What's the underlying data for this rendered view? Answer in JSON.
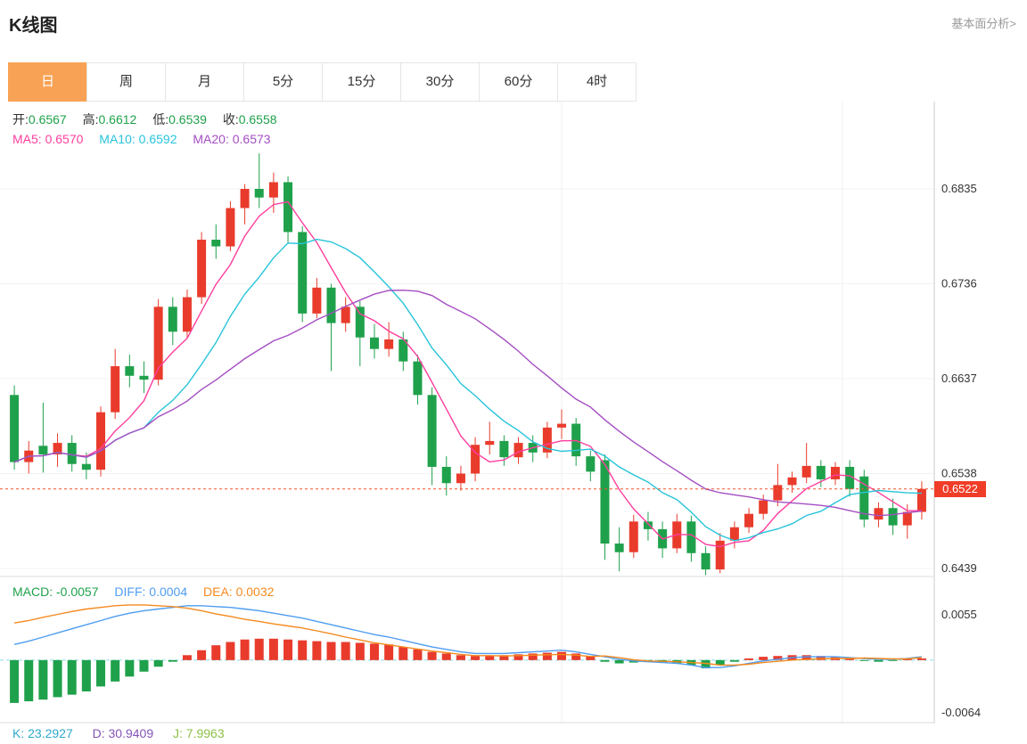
{
  "header": {
    "title": "K线图",
    "link": "基本面分析>"
  },
  "tabs": [
    {
      "label": "日",
      "name": "tab-day",
      "active": true
    },
    {
      "label": "周",
      "name": "tab-week",
      "active": false
    },
    {
      "label": "月",
      "name": "tab-month",
      "active": false
    },
    {
      "label": "5分",
      "name": "tab-5min",
      "active": false
    },
    {
      "label": "15分",
      "name": "tab-15min",
      "active": false
    },
    {
      "label": "30分",
      "name": "tab-30min",
      "active": false
    },
    {
      "label": "60分",
      "name": "tab-60min",
      "active": false
    },
    {
      "label": "4时",
      "name": "tab-4hour",
      "active": false
    }
  ],
  "main_chart": {
    "ohlc": {
      "open_label": "开:",
      "open": "0.6567",
      "high_label": "高:",
      "high": "0.6612",
      "low_label": "低:",
      "low": "0.6539",
      "close_label": "收:",
      "close": "0.6558"
    },
    "ma": {
      "ma5_label": "MA5:",
      "ma5": "0.6570",
      "ma10_label": "MA10:",
      "ma10": "0.6592",
      "ma20_label": "MA20:",
      "ma20": "0.6573"
    }
  },
  "macd_panel": {
    "macd_label": "MACD:",
    "macd": "-0.0057",
    "diff_label": "DIFF:",
    "diff": "0.0004",
    "dea_label": "DEA:",
    "dea": "0.0032"
  },
  "kdj_panel": {
    "k_label": "K:",
    "k": "23.2927",
    "d_label": "D:",
    "d": "30.9409",
    "j_label": "J:",
    "j": "7.9963"
  },
  "colors": {
    "up": "#e93b2c",
    "down": "#1fa14b",
    "tab_active": "#f7a254",
    "ma5": "#ff3e9e",
    "ma10": "#27c4da",
    "ma20": "#a44ec2",
    "diff": "#4f9df2",
    "dea": "#f58a1f",
    "zero": "#86dcea",
    "price_line": "#f4502c",
    "badge": "#f03d28",
    "k": "#2fa9cb",
    "d": "#8455b5",
    "j": "#8dc04a",
    "link": "#999999",
    "tick_text": "#333333"
  },
  "chart_data": {
    "type": "candlestick",
    "y_ticks": [
      0.6835,
      0.6736,
      0.6637,
      0.6538,
      0.6439
    ],
    "current_price": 0.6522,
    "ma_windows": [
      5,
      10,
      20
    ],
    "candles": [
      [
        0.662,
        0.663,
        0.6542,
        0.655
      ],
      [
        0.655,
        0.6572,
        0.6538,
        0.6562
      ],
      [
        0.6567,
        0.6612,
        0.6539,
        0.6558
      ],
      [
        0.6558,
        0.658,
        0.6545,
        0.657
      ],
      [
        0.657,
        0.6578,
        0.654,
        0.6548
      ],
      [
        0.6548,
        0.656,
        0.6532,
        0.6542
      ],
      [
        0.6542,
        0.6608,
        0.6535,
        0.6602
      ],
      [
        0.6602,
        0.6668,
        0.6595,
        0.665
      ],
      [
        0.665,
        0.6662,
        0.6628,
        0.664
      ],
      [
        0.664,
        0.6655,
        0.6622,
        0.6636
      ],
      [
        0.6636,
        0.672,
        0.663,
        0.6712
      ],
      [
        0.6712,
        0.6722,
        0.6672,
        0.6686
      ],
      [
        0.6686,
        0.673,
        0.668,
        0.6722
      ],
      [
        0.6722,
        0.679,
        0.6715,
        0.6782
      ],
      [
        0.6782,
        0.6798,
        0.6762,
        0.6775
      ],
      [
        0.6775,
        0.6822,
        0.677,
        0.6815
      ],
      [
        0.6815,
        0.684,
        0.6798,
        0.6835
      ],
      [
        0.6835,
        0.6872,
        0.6815,
        0.6826
      ],
      [
        0.6826,
        0.6852,
        0.681,
        0.6842
      ],
      [
        0.6842,
        0.6848,
        0.6778,
        0.679
      ],
      [
        0.679,
        0.6796,
        0.6696,
        0.6705
      ],
      [
        0.6705,
        0.6742,
        0.67,
        0.6732
      ],
      [
        0.6732,
        0.6736,
        0.6645,
        0.6695
      ],
      [
        0.6695,
        0.6722,
        0.6686,
        0.6712
      ],
      [
        0.6712,
        0.6718,
        0.665,
        0.668
      ],
      [
        0.668,
        0.6694,
        0.6658,
        0.6668
      ],
      [
        0.6668,
        0.6696,
        0.666,
        0.6678
      ],
      [
        0.6678,
        0.6686,
        0.6645,
        0.6655
      ],
      [
        0.6655,
        0.6662,
        0.661,
        0.662
      ],
      [
        0.662,
        0.6628,
        0.6526,
        0.6545
      ],
      [
        0.6545,
        0.6556,
        0.6515,
        0.6528
      ],
      [
        0.6528,
        0.6546,
        0.652,
        0.6538
      ],
      [
        0.6538,
        0.6576,
        0.653,
        0.6568
      ],
      [
        0.6568,
        0.6592,
        0.6558,
        0.6572
      ],
      [
        0.6572,
        0.6578,
        0.6546,
        0.6555
      ],
      [
        0.6555,
        0.6576,
        0.6548,
        0.657
      ],
      [
        0.657,
        0.6578,
        0.655,
        0.656
      ],
      [
        0.656,
        0.6592,
        0.6554,
        0.6586
      ],
      [
        0.6586,
        0.6605,
        0.6574,
        0.659
      ],
      [
        0.659,
        0.6596,
        0.6546,
        0.6556
      ],
      [
        0.6556,
        0.6562,
        0.653,
        0.654
      ],
      [
        0.6552,
        0.6558,
        0.6448,
        0.6465
      ],
      [
        0.6465,
        0.6482,
        0.6436,
        0.6456
      ],
      [
        0.6456,
        0.6495,
        0.645,
        0.6488
      ],
      [
        0.6488,
        0.6498,
        0.6468,
        0.648
      ],
      [
        0.648,
        0.6488,
        0.645,
        0.646
      ],
      [
        0.646,
        0.6496,
        0.6455,
        0.6488
      ],
      [
        0.6488,
        0.6494,
        0.6446,
        0.6455
      ],
      [
        0.6455,
        0.6462,
        0.6432,
        0.6438
      ],
      [
        0.6438,
        0.6476,
        0.6434,
        0.6468
      ],
      [
        0.6468,
        0.6488,
        0.646,
        0.6482
      ],
      [
        0.6482,
        0.6502,
        0.6476,
        0.6496
      ],
      [
        0.6496,
        0.6516,
        0.649,
        0.651
      ],
      [
        0.651,
        0.6548,
        0.6504,
        0.6526
      ],
      [
        0.6526,
        0.654,
        0.6518,
        0.6534
      ],
      [
        0.6534,
        0.657,
        0.6528,
        0.6546
      ],
      [
        0.6546,
        0.6552,
        0.6524,
        0.6532
      ],
      [
        0.6532,
        0.655,
        0.6526,
        0.6545
      ],
      [
        0.6545,
        0.6552,
        0.6514,
        0.6522
      ],
      [
        0.6535,
        0.6542,
        0.6482,
        0.649
      ],
      [
        0.649,
        0.6508,
        0.6482,
        0.6502
      ],
      [
        0.6502,
        0.6512,
        0.6474,
        0.6484
      ],
      [
        0.6484,
        0.6506,
        0.647,
        0.6498
      ],
      [
        0.6498,
        0.653,
        0.649,
        0.6522
      ]
    ],
    "macd": {
      "y_ticks": [
        0.0055,
        -0.0064
      ],
      "hist": [
        -0.0052,
        -0.005,
        -0.0048,
        -0.0045,
        -0.0042,
        -0.0038,
        -0.0032,
        -0.0026,
        -0.002,
        -0.0014,
        -0.0008,
        -0.0002,
        0.0006,
        0.0012,
        0.0018,
        0.0022,
        0.0025,
        0.0026,
        0.0026,
        0.0025,
        0.0024,
        0.0023,
        0.0022,
        0.0022,
        0.0021,
        0.002,
        0.0019,
        0.0016,
        0.0013,
        0.001,
        0.0008,
        0.0006,
        0.0005,
        0.0005,
        0.0006,
        0.0007,
        0.0008,
        0.0009,
        0.001,
        0.0008,
        0.0005,
        -0.0002,
        -0.0004,
        -0.0003,
        -0.0002,
        -0.0003,
        -0.0004,
        -0.0006,
        -0.001,
        -0.0006,
        -0.0002,
        0.0002,
        0.0004,
        0.0005,
        0.0006,
        0.0006,
        0.0005,
        0.0004,
        0.0002,
        -0.0001,
        -0.0002,
        -0.0001,
        0.0001,
        0.0002
      ],
      "diff": [
        0.0019,
        0.0023,
        0.0028,
        0.0033,
        0.0038,
        0.0043,
        0.0048,
        0.0053,
        0.0057,
        0.006,
        0.0062,
        0.0064,
        0.0066,
        0.0066,
        0.0065,
        0.0064,
        0.0062,
        0.006,
        0.0057,
        0.0054,
        0.0051,
        0.0047,
        0.0043,
        0.0039,
        0.0035,
        0.0031,
        0.0028,
        0.0024,
        0.002,
        0.0016,
        0.0013,
        0.001,
        0.0008,
        0.0008,
        0.0008,
        0.0009,
        0.001,
        0.0011,
        0.0012,
        0.001,
        0.0007,
        0.0004,
        0.0001,
        -0.0001,
        -0.0002,
        -0.0003,
        -0.0004,
        -0.0006,
        -0.0009,
        -0.0009,
        -0.0007,
        -0.0004,
        -0.0001,
        0.0001,
        0.0003,
        0.0004,
        0.0004,
        0.0004,
        0.0003,
        0.0002,
        0.0001,
        0.0001,
        0.0002,
        0.0004
      ]
    },
    "kdj": {
      "k": 23.2927,
      "d": 30.9409,
      "j": 7.9963
    }
  }
}
